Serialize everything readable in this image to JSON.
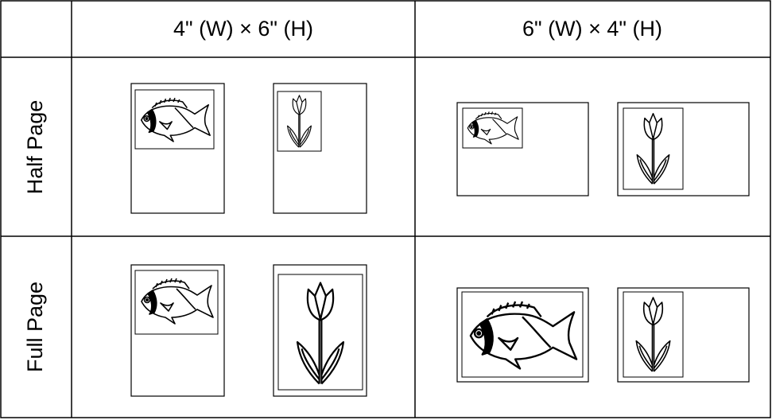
{
  "table": {
    "column_headers": [
      "4\" (W) × 6\" (H)",
      "6\" (W) × 4\" (H)"
    ],
    "row_headers": [
      "Half Page",
      "Full Page"
    ]
  }
}
